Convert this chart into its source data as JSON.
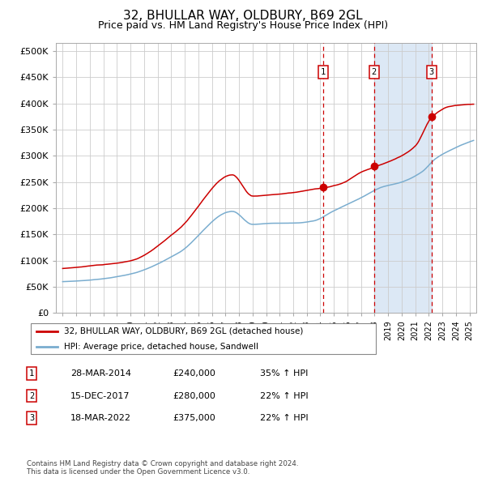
{
  "title": "32, BHULLAR WAY, OLDBURY, B69 2GL",
  "subtitle": "Price paid vs. HM Land Registry's House Price Index (HPI)",
  "title_fontsize": 11,
  "subtitle_fontsize": 9,
  "ylabel_ticks": [
    "£0",
    "£50K",
    "£100K",
    "£150K",
    "£200K",
    "£250K",
    "£300K",
    "£350K",
    "£400K",
    "£450K",
    "£500K"
  ],
  "ytick_values": [
    0,
    50000,
    100000,
    150000,
    200000,
    250000,
    300000,
    350000,
    400000,
    450000,
    500000
  ],
  "ylim": [
    0,
    515000
  ],
  "xlim_start": 1994.5,
  "xlim_end": 2025.5,
  "purchase_dates": [
    2014.23,
    2017.96,
    2022.21
  ],
  "purchase_prices": [
    240000,
    280000,
    375000
  ],
  "purchase_labels": [
    "1",
    "2",
    "3"
  ],
  "purchase_date_strs": [
    "28-MAR-2014",
    "15-DEC-2017",
    "18-MAR-2022"
  ],
  "purchase_price_strs": [
    "£240,000",
    "£280,000",
    "£375,000"
  ],
  "purchase_hpi_strs": [
    "35% ↑ HPI",
    "22% ↑ HPI",
    "22% ↑ HPI"
  ],
  "shaded_region": [
    2017.96,
    2022.21
  ],
  "legend_entries": [
    "32, BHULLAR WAY, OLDBURY, B69 2GL (detached house)",
    "HPI: Average price, detached house, Sandwell"
  ],
  "line_colors": [
    "#cc0000",
    "#7aadcf"
  ],
  "footnote": "Contains HM Land Registry data © Crown copyright and database right 2024.\nThis data is licensed under the Open Government Licence v3.0.",
  "background_color": "#ffffff",
  "grid_color": "#cccccc",
  "shade_color": "#dce8f5"
}
